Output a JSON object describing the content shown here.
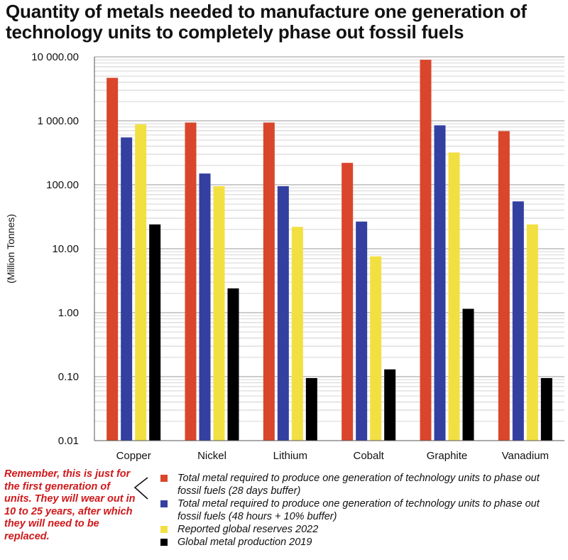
{
  "title": "Quantity of metals needed to manufacture one generation of technology units to completely phase out fossil fuels",
  "note": "Remember, this is just for the first generation of units. They will wear out in 10 to 25 years, after which they will need to be replaced.",
  "legend": [
    {
      "label": "Total metal required to produce one generation of technology units to phase out fossil fuels (28 days buffer)",
      "color": "#d9462c"
    },
    {
      "label": "Total metal required to produce one generation of technology units to phase out fossil fuels (48 hours + 10% buffer)",
      "color": "#3340a0"
    },
    {
      "label": "Reported global reserves 2022",
      "color": "#f2e043"
    },
    {
      "label": "Global metal production 2019",
      "color": "#000000"
    }
  ],
  "chart_data": {
    "type": "bar",
    "title": "Quantity of metals needed to manufacture one generation of technology units to completely phase out fossil fuels",
    "xlabel": "",
    "ylabel": "(Million Tonnes)",
    "yscale": "log",
    "ylim": [
      0.01,
      10000
    ],
    "yticks": [
      "0.01",
      "0.10",
      "1.00",
      "10.00",
      "100.00",
      "1 000.00",
      "10 000.00"
    ],
    "grid": true,
    "categories": [
      "Copper",
      "Nickel",
      "Lithium",
      "Cobalt",
      "Graphite",
      "Vanadium"
    ],
    "series": [
      {
        "name": "Total metal required to produce one generation of technology units to phase out fossil fuels (28 days buffer)",
        "color": "#d9462c",
        "values": [
          4700,
          940,
          940,
          220,
          9000,
          690
        ]
      },
      {
        "name": "Total metal required to produce one generation of technology units to phase out fossil fuels (48 hours + 10% buffer)",
        "color": "#3340a0",
        "values": [
          550,
          150,
          95,
          26.6,
          850,
          55
        ]
      },
      {
        "name": "Reported global reserves 2022",
        "color": "#f2e043",
        "values": [
          880,
          95,
          22,
          7.6,
          320,
          24
        ]
      },
      {
        "name": "Global metal production 2019",
        "color": "#000000",
        "values": [
          24,
          2.4,
          0.095,
          0.13,
          1.15,
          0.095
        ]
      }
    ]
  }
}
